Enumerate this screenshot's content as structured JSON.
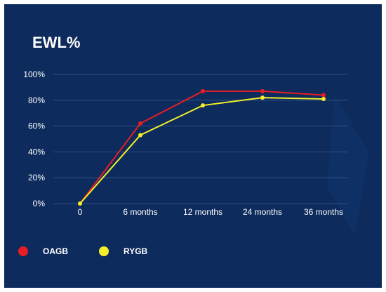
{
  "chart_data": {
    "type": "line",
    "title": "EWL%",
    "x": [
      "0",
      "6 months",
      "12 months",
      "24 months",
      "36 months"
    ],
    "yticks": [
      "0%",
      "20%",
      "40%",
      "60%",
      "80%",
      "100%"
    ],
    "ylim": [
      0,
      100
    ],
    "grid": true,
    "legend_position": "bottom-left",
    "series": [
      {
        "name": "OAGB",
        "color": "#e81e25",
        "values": [
          0,
          62,
          87,
          87,
          84
        ]
      },
      {
        "name": "RYGB",
        "color": "#f4ef2a",
        "values": [
          0,
          53,
          76,
          82,
          81
        ]
      }
    ]
  },
  "colors": {
    "background": "#0d2b5c",
    "text": "#ffffff",
    "grid": "#3a5b8c"
  }
}
